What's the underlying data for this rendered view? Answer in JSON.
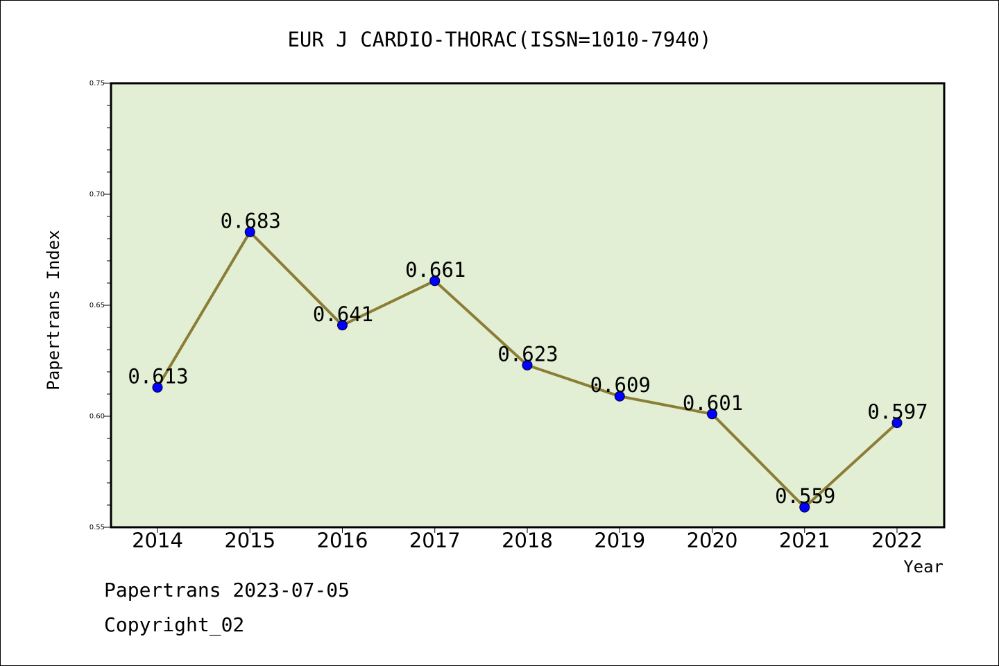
{
  "chart_data": {
    "type": "line",
    "title": "EUR J CARDIO-THORAC(ISSN=1010-7940)",
    "xlabel": "Year",
    "ylabel": "Papertrans Index",
    "categories": [
      "2014",
      "2015",
      "2016",
      "2017",
      "2018",
      "2019",
      "2020",
      "2021",
      "2022"
    ],
    "series": [
      {
        "values": [
          0.613,
          0.683,
          0.641,
          0.661,
          0.623,
          0.609,
          0.601,
          0.559,
          0.597
        ],
        "labels": [
          "0.613",
          "0.683",
          "0.641",
          "0.661",
          "0.623",
          "0.609",
          "0.601",
          "0.559",
          "0.597"
        ]
      }
    ],
    "ylim": [
      0.55,
      0.75
    ],
    "yticks": [
      "0.55",
      "0.60",
      "0.65",
      "0.70",
      "0.75"
    ],
    "grid": false,
    "colors": {
      "plot_background": "#e2efd4",
      "line": "#8b7d35",
      "marker": "#0000ff"
    }
  },
  "footer": {
    "line1": "Papertrans 2023-07-05",
    "line2": "Copyright_02"
  }
}
